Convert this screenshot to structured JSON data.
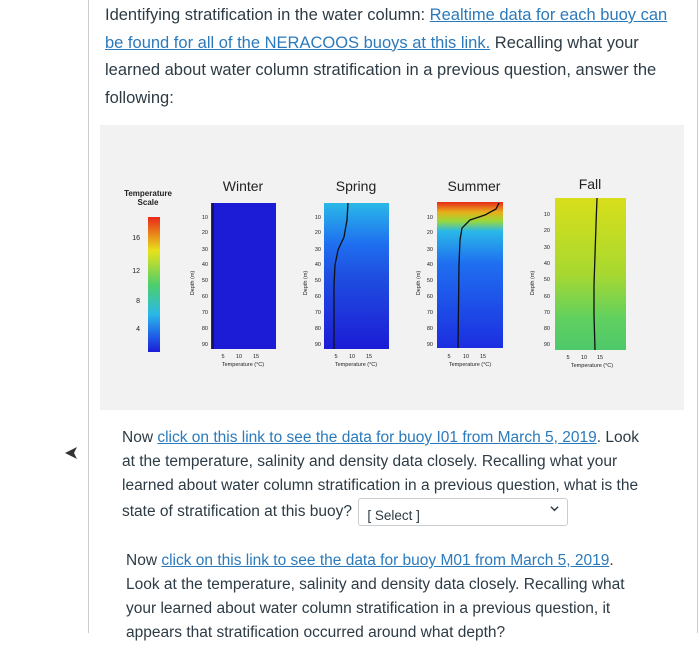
{
  "heading": {
    "prefix": "Identifying stratification in the water column:",
    "link": "Realtime data for each buoy can be found for all of the NERACOOS buoys at this link.",
    "suffix": "Recalling what your learned about water column stratification in a previous question, answer the following:"
  },
  "figure": {
    "scale_title_1": "Temperature",
    "scale_title_2": "Scale",
    "scale_ticks": [
      "16",
      "12",
      "8",
      "4"
    ],
    "y_axis_label": "Depth (m)",
    "x_axis_label": "Temperature (°C)",
    "depth_ticks": [
      "10",
      "20",
      "30",
      "40",
      "50",
      "60",
      "70",
      "80",
      "90"
    ],
    "temp_ticks": [
      "5",
      "10",
      "15"
    ],
    "panels": [
      {
        "name": "Winter"
      },
      {
        "name": "Spring"
      },
      {
        "name": "Summer"
      },
      {
        "name": "Fall"
      }
    ],
    "colors": {
      "deep_blue": "#1c1cd6",
      "blue": "#1f5fe8",
      "cyan": "#2ab8e8",
      "green": "#4ecf6a",
      "yellow": "#e8e21a",
      "red": "#e8281a"
    }
  },
  "question1": {
    "prefix": "Now",
    "link": "click on this link to see the data for buoy I01 from March 5, 2019",
    "suffix": ". Look at the temperature, salinity and density data closely.  Recalling what your learned about water column stratification in a previous question, what is the state of stratification at this buoy?",
    "select_label": "[ Select ]"
  },
  "question2": {
    "prefix": "Now",
    "link": "click on this link to see the data for buoy M01 from March 5, 2019",
    "suffix": ". Look at the temperature, salinity and density data closely.  Recalling what your learned about water column stratification in a previous question, it appears that stratification occurred around what depth?"
  }
}
